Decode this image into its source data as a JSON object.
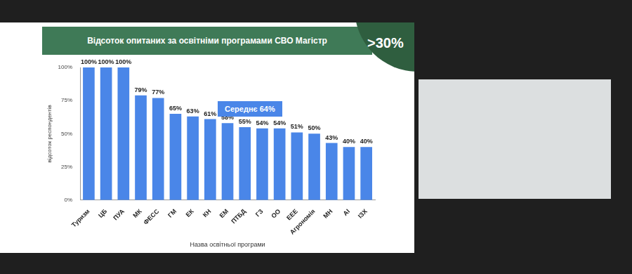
{
  "chart_data": {
    "type": "bar",
    "title": "Відсоток опитаних за освітніми програмами СВО Магістр",
    "x_label": "Назва освітньої програми",
    "y_label": "відсоток респондентів",
    "annotations": [
      ">30%",
      "Середнє 64%"
    ],
    "categories": [
      "Туризм",
      "ЦБ",
      "ПУА",
      "МК",
      "ФЕСС",
      "ГМ",
      "ЕК",
      "КН",
      "ЕМ",
      "ПТБД",
      "ГЗ",
      "ОО",
      "ЕЕЕ",
      "Агрономія",
      "МН",
      "АІ",
      "ІЗХ"
    ],
    "values": [
      100,
      100,
      100,
      79,
      77,
      65,
      63,
      61,
      58,
      55,
      54,
      54,
      51,
      50,
      43,
      40,
      40
    ],
    "value_labels": [
      "100%",
      "100%",
      "100%",
      "79%",
      "77%",
      "65%",
      "63%",
      "61%",
      "58%",
      "55%",
      "54%",
      "54%",
      "51%",
      "50%",
      "43%",
      "40%",
      "40%"
    ],
    "color": "#4a86e8",
    "ylim": [
      0,
      100
    ],
    "yticks": [
      {
        "value": 0,
        "label": "0%"
      },
      {
        "value": 25,
        "label": "25%"
      },
      {
        "value": 50,
        "label": "50%"
      },
      {
        "value": 75,
        "label": "75%"
      },
      {
        "value": 100,
        "label": "100%"
      }
    ],
    "grid": false,
    "data_labels": true
  }
}
